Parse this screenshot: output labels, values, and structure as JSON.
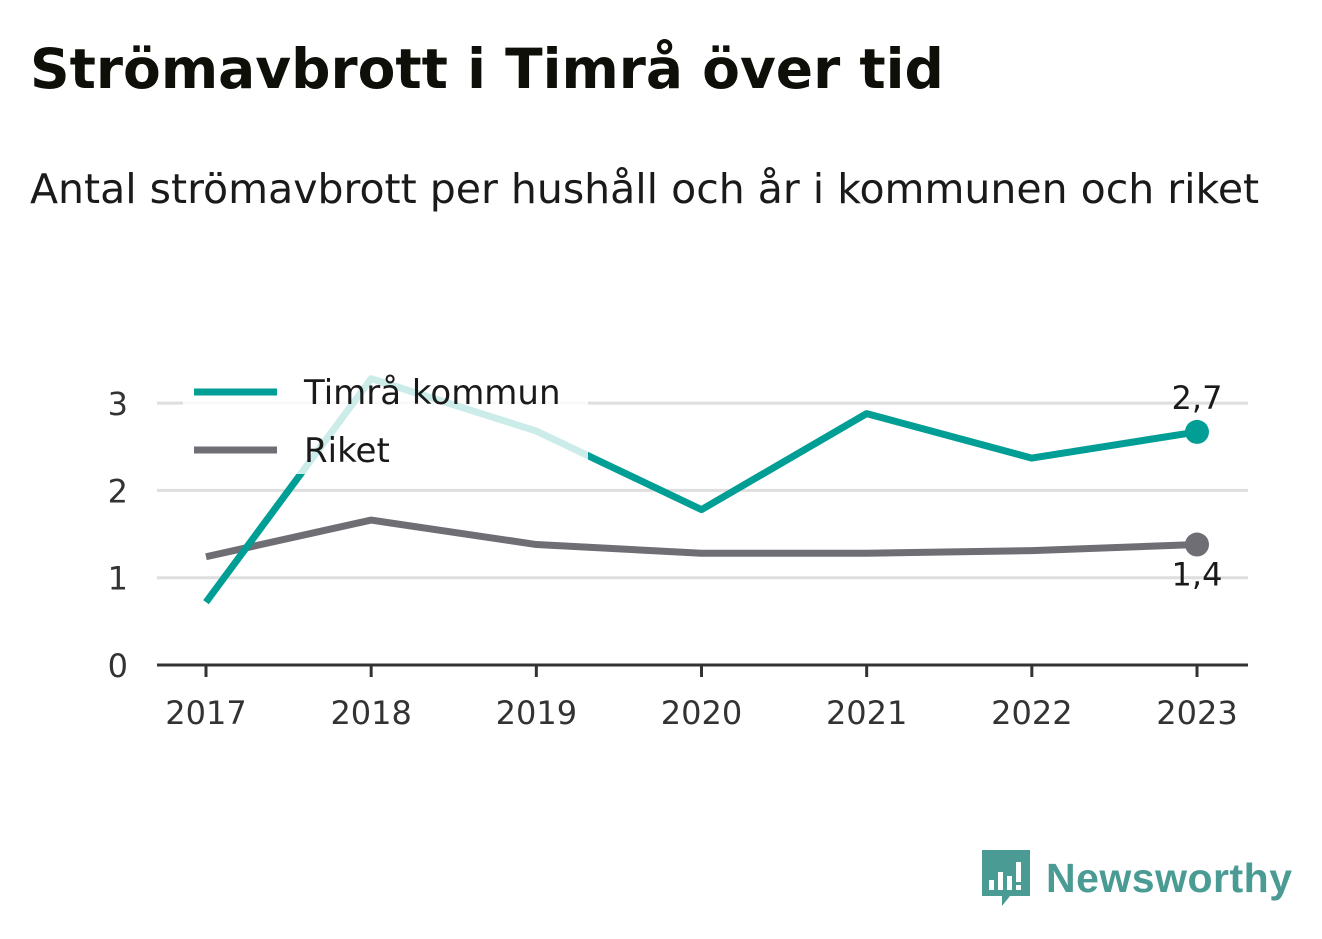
{
  "header": {
    "title": "Strömavbrott i Timrå över tid",
    "subtitle": "Antal strömavbrott per hushåll och år i kommunen och riket"
  },
  "brand": {
    "name": "Newsworthy",
    "icon": "bar-chart-speech-bubble-icon",
    "color": "#4a9b94"
  },
  "chart_data": {
    "type": "line",
    "title": "Strömavbrott i Timrå över tid",
    "subtitle": "Antal strömavbrott per hushåll och år i kommunen och riket",
    "x": [
      "2017",
      "2018",
      "2019",
      "2020",
      "2021",
      "2022",
      "2023"
    ],
    "ylim": [
      0,
      3.4
    ],
    "yticks": [
      0,
      1,
      2,
      3
    ],
    "grid": true,
    "legend_position": "top-left",
    "series": [
      {
        "name": "Timrå kommun",
        "color": "#009e94",
        "values": [
          0.72,
          3.28,
          2.68,
          1.78,
          2.88,
          2.37,
          2.67
        ],
        "end_label": "2,7"
      },
      {
        "name": "Riket",
        "color": "#6f6e75",
        "values": [
          1.24,
          1.66,
          1.38,
          1.28,
          1.28,
          1.31,
          1.38
        ],
        "end_label": "1,4"
      }
    ]
  }
}
